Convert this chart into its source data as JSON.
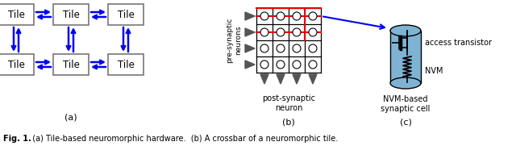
{
  "fig_width": 6.4,
  "fig_height": 1.81,
  "dpi": 100,
  "bg_color": "#ffffff",
  "tile_box_color": "#ffffff",
  "tile_box_edge": "#777777",
  "arrow_color": "#0000ee",
  "red_color": "#ee0000",
  "black": "#000000",
  "dark_gray": "#555555",
  "blue_fill": "#7fb3d3",
  "caption_bold": "Fig. 1.",
  "caption_rest": "  (a) Tile-based neuromorphic hardware.  (b) A crossbar of a neuromorphic tile.",
  "label_a": "(a)",
  "label_b": "(b)",
  "label_c": "(c)",
  "pre_synaptic": "pre-synaptic\nneurons",
  "post_synaptic": "post-synaptic\nneuron",
  "access_transistor": "access transistor",
  "nvm_label": "NVM",
  "nvm_based": "NVM-based\nsynaptic cell",
  "tile_label": "Tile"
}
